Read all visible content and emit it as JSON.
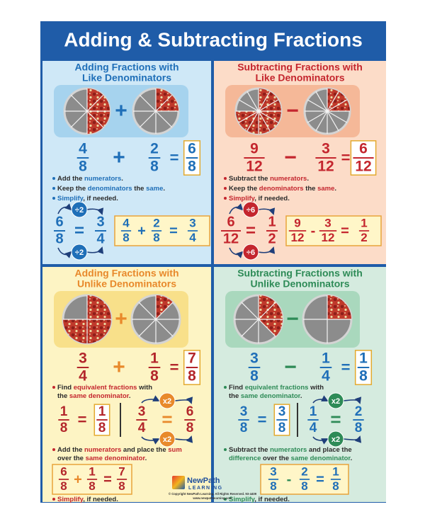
{
  "title": "Adding & Subtracting Fractions",
  "panels": [
    {
      "heading": [
        "Adding Fractions with",
        "Like Denominators"
      ],
      "heading_color": "#1f6fb8",
      "background": "#cfe8f7",
      "box_color": "#a6d3ee",
      "fraction_color": "#1f6fb8",
      "op_color": "#1f6fb8",
      "accent": "#1f6fb8",
      "equation": {
        "a": {
          "n": 4,
          "d": 8
        },
        "op": "+",
        "b": {
          "n": 2,
          "d": 8
        },
        "eq": "=",
        "c": {
          "n": 6,
          "d": 8
        }
      },
      "bullets": [
        [
          [
            {
              "text": "Add the "
            },
            {
              "text": "numerators",
              "highlight": true
            },
            {
              "text": "."
            }
          ]
        ],
        [
          [
            {
              "text": "Keep the "
            },
            {
              "text": "denominators",
              "highlight": true
            },
            {
              "text": " the "
            },
            {
              "text": "same",
              "highlight": true
            },
            {
              "text": "."
            }
          ]
        ],
        [
          [
            {
              "text": "Simplify",
              "highlight": true
            },
            {
              "text": ", if needed."
            }
          ]
        ]
      ],
      "simplify": {
        "from": {
          "n": 6,
          "d": 8
        },
        "eq": "=",
        "to": {
          "n": 3,
          "d": 4
        },
        "top": "÷2",
        "bottom": "÷2"
      },
      "sum": {
        "a": {
          "n": 4,
          "d": 8
        },
        "op": "+",
        "b": {
          "n": 2,
          "d": 8
        },
        "eq": "=",
        "c": {
          "n": 3,
          "d": 4
        }
      }
    },
    {
      "heading": [
        "Subtracting Fractions with",
        "Like Denominators"
      ],
      "heading_color": "#c4262e",
      "background": "#fcdcc8",
      "box_color": "#f5b898",
      "fraction_color": "#c4262e",
      "op_color": "#c4262e",
      "accent": "#c4262e",
      "equation": {
        "a": {
          "n": 9,
          "d": 12
        },
        "op": "−",
        "b": {
          "n": 3,
          "d": 12
        },
        "eq": "=",
        "c": {
          "n": 6,
          "d": 12
        }
      },
      "bullets": [
        [
          [
            {
              "text": "Subtract the "
            },
            {
              "text": "numerators",
              "highlight": true
            },
            {
              "text": "."
            }
          ]
        ],
        [
          [
            {
              "text": "Keep the "
            },
            {
              "text": "denominators",
              "highlight": true
            },
            {
              "text": " the "
            },
            {
              "text": "same",
              "highlight": true
            },
            {
              "text": "."
            }
          ]
        ],
        [
          [
            {
              "text": "Simplify",
              "highlight": true
            },
            {
              "text": ", if needed."
            }
          ]
        ]
      ],
      "simplify": {
        "from": {
          "n": 6,
          "d": 12
        },
        "eq": "=",
        "to": {
          "n": 1,
          "d": 2
        },
        "top": "÷6",
        "bottom": "÷6"
      },
      "sum": {
        "a": {
          "n": 9,
          "d": 12
        },
        "op": "-",
        "b": {
          "n": 3,
          "d": 12
        },
        "eq": "=",
        "c": {
          "n": 1,
          "d": 2
        }
      }
    },
    {
      "heading": [
        "Adding Fractions with",
        "Unlike Denominators"
      ],
      "heading_color": "#e8892b",
      "background": "#fdf4c4",
      "box_color": "#f8e08a",
      "fraction_color": "#b3262b",
      "op_color": "#e8892b",
      "accent": "#c4262e",
      "equation": {
        "a": {
          "n": 3,
          "d": 4
        },
        "op": "+",
        "b": {
          "n": 1,
          "d": 8
        },
        "eq": "=",
        "c": {
          "n": 7,
          "d": 8
        }
      },
      "bullets": [
        [
          [
            {
              "text": "Find "
            },
            {
              "text": "equivalent fractions",
              "highlight": true
            },
            {
              "text": " with"
            }
          ],
          [
            {
              "text": "the "
            },
            {
              "text": "same denominator",
              "highlight": true
            },
            {
              "text": "."
            }
          ]
        ],
        [
          [
            {
              "text": "Add the "
            },
            {
              "text": "numerators",
              "highlight": true
            },
            {
              "text": " and place the "
            },
            {
              "text": "sum",
              "highlight": true
            }
          ],
          [
            {
              "text": "over the "
            },
            {
              "text": "same denominator",
              "highlight": true
            },
            {
              "text": "."
            }
          ]
        ],
        [
          [
            {
              "text": "Simplify",
              "highlight": true
            },
            {
              "text": ", if needed."
            }
          ]
        ]
      ],
      "equivalent": {
        "left": {
          "a": {
            "n": 1,
            "d": 8
          },
          "eq": "=",
          "c": {
            "n": 1,
            "d": 8
          }
        },
        "right": {
          "a": {
            "n": 3,
            "d": 4
          },
          "eq": "=",
          "c": {
            "n": 6,
            "d": 8
          }
        },
        "top": "x2",
        "bottom": "x2"
      },
      "sum": {
        "a": {
          "n": 6,
          "d": 8
        },
        "op": "+",
        "b": {
          "n": 1,
          "d": 8
        },
        "eq": "=",
        "c": {
          "n": 7,
          "d": 8
        }
      }
    },
    {
      "heading": [
        "Subtracting Fractions with",
        "Unlike Denominators"
      ],
      "heading_color": "#2e8b57",
      "background": "#d5ebdf",
      "box_color": "#a9d8bd",
      "fraction_color": "#1f6fb8",
      "op_color": "#2e8b57",
      "accent": "#2e8b57",
      "equation": {
        "a": {
          "n": 3,
          "d": 8
        },
        "op": "−",
        "b": {
          "n": 1,
          "d": 4
        },
        "eq": "=",
        "c": {
          "n": 1,
          "d": 8
        }
      },
      "bullets": [
        [
          [
            {
              "text": "Find "
            },
            {
              "text": "equivalent fractions",
              "highlight": true
            },
            {
              "text": " with"
            }
          ],
          [
            {
              "text": "the "
            },
            {
              "text": "same denominator",
              "highlight": true
            },
            {
              "text": "."
            }
          ]
        ],
        [
          [
            {
              "text": "Subtract the "
            },
            {
              "text": "numerators",
              "highlight": true
            },
            {
              "text": " and place the"
            }
          ],
          [
            {
              "text": "difference",
              "highlight": true
            },
            {
              "text": " over the "
            },
            {
              "text": "same denominator",
              "highlight": true
            },
            {
              "text": "."
            }
          ]
        ],
        [
          [
            {
              "text": "Simplify",
              "highlight": true
            },
            {
              "text": ", if needed."
            }
          ]
        ]
      ],
      "equivalent": {
        "left": {
          "a": {
            "n": 3,
            "d": 8
          },
          "eq": "=",
          "c": {
            "n": 3,
            "d": 8
          }
        },
        "right": {
          "a": {
            "n": 1,
            "d": 4
          },
          "eq": "=",
          "c": {
            "n": 2,
            "d": 8
          }
        },
        "top": "x2",
        "bottom": "x2"
      },
      "sum": {
        "a": {
          "n": 3,
          "d": 8
        },
        "op": "-",
        "b": {
          "n": 2,
          "d": 8
        },
        "eq": "=",
        "c": {
          "n": 1,
          "d": 8
        }
      }
    }
  ],
  "footer": {
    "brand": [
      "NewPath",
      "LEARNING"
    ],
    "copyright": "© Copyright NewPath Learning. All Rights Reserved. 93-4409",
    "website": "www.newpathlearning.com"
  }
}
